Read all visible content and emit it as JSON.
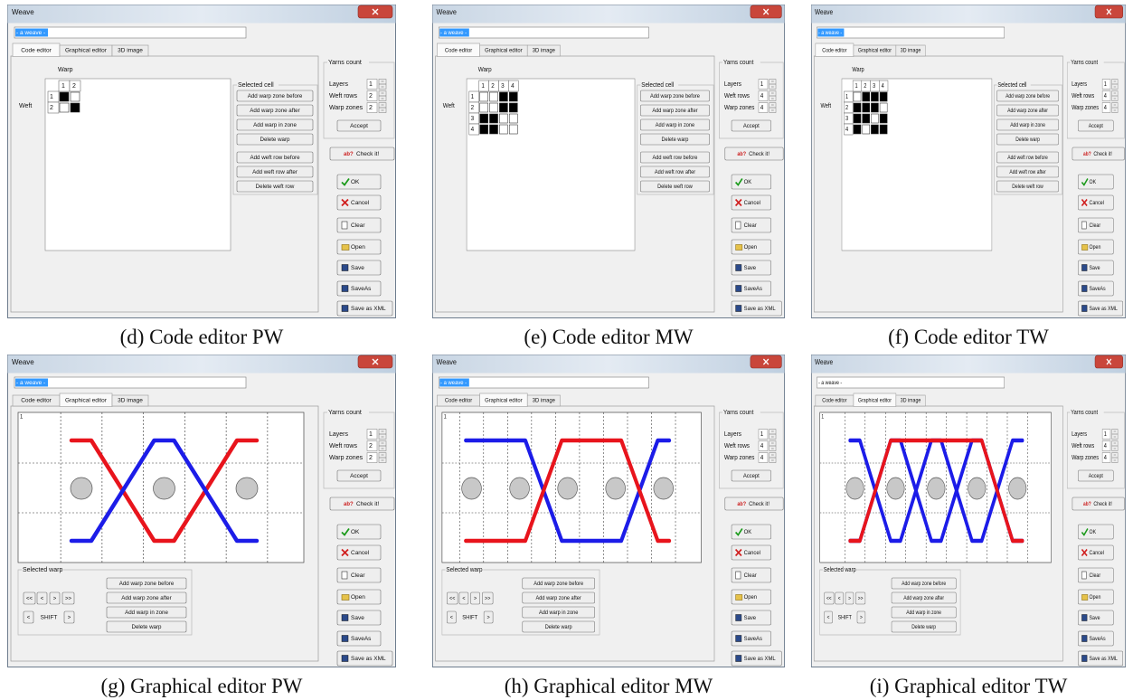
{
  "panels": [
    {
      "caption": "(d) Code editor PW",
      "title": "Weave",
      "name": "- a weave -",
      "name_highlight": true,
      "tabs": [
        "Code editor",
        "Graphical editor",
        "3D image"
      ],
      "active_tab": 0,
      "warp_label": "Warp",
      "weft_label": "Weft",
      "col_headers": [
        "1",
        "2"
      ],
      "row_headers": [
        "1",
        "2"
      ],
      "cells": [
        [
          true,
          false
        ],
        [
          false,
          true
        ]
      ],
      "group_title": "Selected cell",
      "buttons": [
        "Add warp zone before",
        "Add warp zone after",
        "Add warp in zone",
        "Delete warp",
        "Add weft row before",
        "Add weft row after",
        "Delete weft row"
      ],
      "yarns_title": "Yarns count",
      "yarn_labels": [
        "Layers",
        "Weft rows",
        "Warp zones"
      ],
      "yarn_values": [
        1,
        2,
        2
      ],
      "accept": "Accept",
      "check_icon": "ab?",
      "check": "Check it!",
      "actions": [
        "OK",
        "Cancel",
        "Clear",
        "Open",
        "Save",
        "SaveAs",
        "Save as XML"
      ]
    },
    {
      "caption": "(e) Code editor MW",
      "title": "Weave",
      "name": "- a weave -",
      "name_highlight": true,
      "tabs": [
        "Code editor",
        "Graphical editor",
        "3D image"
      ],
      "active_tab": 0,
      "warp_label": "Warp",
      "weft_label": "Weft",
      "col_headers": [
        "1",
        "2",
        "3",
        "4"
      ],
      "row_headers": [
        "1",
        "2",
        "3",
        "4"
      ],
      "cells": [
        [
          false,
          false,
          true,
          true
        ],
        [
          false,
          false,
          true,
          true
        ],
        [
          true,
          true,
          false,
          false
        ],
        [
          true,
          true,
          false,
          false
        ]
      ],
      "group_title": "Selected cell",
      "buttons": [
        "Add warp zone before",
        "Add warp zone after",
        "Add warp in zone",
        "Delete warp",
        "Add weft row before",
        "Add weft row after",
        "Delete weft row"
      ],
      "yarns_title": "Yarns count",
      "yarn_labels": [
        "Layers",
        "Weft rows",
        "Warp zones"
      ],
      "yarn_values": [
        1,
        4,
        4
      ],
      "accept": "Accept",
      "check_icon": "ab?",
      "check": "Check it!",
      "actions": [
        "OK",
        "Cancel",
        "Clear",
        "Open",
        "Save",
        "SaveAs",
        "Save as XML"
      ]
    },
    {
      "caption": "(f) Code editor TW",
      "title": "Weave",
      "name": "- a weave -",
      "name_highlight": true,
      "tabs": [
        "Code editor",
        "Graphical editor",
        "3D image"
      ],
      "active_tab": 0,
      "warp_label": "Warp",
      "weft_label": "Weft",
      "col_headers": [
        "1",
        "2",
        "3",
        "4"
      ],
      "row_headers": [
        "1",
        "2",
        "3",
        "4"
      ],
      "cells": [
        [
          false,
          true,
          true,
          true
        ],
        [
          true,
          true,
          true,
          false
        ],
        [
          true,
          true,
          false,
          true
        ],
        [
          true,
          false,
          true,
          true
        ]
      ],
      "group_title": "Selected cell",
      "buttons": [
        "Add warp zone before",
        "Add warp zone after",
        "Add warp in zone",
        "Delete warp",
        "Add weft row before",
        "Add weft row after",
        "Delete weft row"
      ],
      "yarns_title": "Yarns count",
      "yarn_labels": [
        "Layers",
        "Weft rows",
        "Warp zones"
      ],
      "yarn_values": [
        1,
        4,
        4
      ],
      "accept": "Accept",
      "check_icon": "ab?",
      "check": "Check it!",
      "actions": [
        "OK",
        "Cancel",
        "Clear",
        "Open",
        "Save",
        "SaveAs",
        "Save as XML"
      ]
    },
    {
      "caption": "(g) Graphical editor PW",
      "title": "Weave",
      "name": "- a weave -",
      "name_highlight": true,
      "tabs": [
        "Code editor",
        "Graphical editor",
        "3D image"
      ],
      "active_tab": 1,
      "canvas_label": "1",
      "warp_colors": [
        "#e8141c",
        "#1c1ce8"
      ],
      "group_title": "Selected warp",
      "nav": [
        "<<",
        "<",
        ">",
        ">>"
      ],
      "shift": [
        "<",
        "SHIFT",
        ">"
      ],
      "buttons": [
        "Add warp zone before",
        "Add warp zone after",
        "Add warp in zone",
        "Delete warp"
      ],
      "yarns_title": "Yarns count",
      "yarn_labels": [
        "Layers",
        "Weft rows",
        "Warp zones"
      ],
      "yarn_values": [
        1,
        2,
        2
      ],
      "accept": "Accept",
      "check_icon": "ab?",
      "check": "Check it!",
      "actions": [
        "OK",
        "Cancel",
        "Clear",
        "Open",
        "Save",
        "SaveAs",
        "Save as XML"
      ]
    },
    {
      "caption": "(h)  Graphical editor MW",
      "title": "Weave",
      "name": "- a weave -",
      "name_highlight": true,
      "tabs": [
        "Code editor",
        "Graphical editor",
        "3D image"
      ],
      "active_tab": 1,
      "canvas_label": "1",
      "warp_colors": [
        "#e8141c",
        "#1c1ce8"
      ],
      "group_title": "Selected warp",
      "nav": [
        "<<",
        "<",
        ">",
        ">>"
      ],
      "shift": [
        "<",
        "SHIFT",
        ">"
      ],
      "buttons": [
        "Add warp zone before",
        "Add warp zone after",
        "Add warp in zone",
        "Delete warp"
      ],
      "yarns_title": "Yarns count",
      "yarn_labels": [
        "Layers",
        "Weft rows",
        "Warp zones"
      ],
      "yarn_values": [
        1,
        4,
        4
      ],
      "accept": "Accept",
      "check_icon": "ab?",
      "check": "Check it!",
      "actions": [
        "OK",
        "Cancel",
        "Clear",
        "Open",
        "Save",
        "SaveAs",
        "Save as XML"
      ]
    },
    {
      "caption": "(i) Graphical editor TW",
      "title": "Weave",
      "name": "- a weave -",
      "name_highlight": false,
      "tabs": [
        "Code editor",
        "Graphical editor",
        "3D image"
      ],
      "active_tab": 1,
      "canvas_label": "1",
      "warp_colors": [
        "#e8141c",
        "#1c1ce8"
      ],
      "group_title": "Selected warp",
      "nav": [
        "<<",
        "<",
        ">",
        ">>"
      ],
      "shift": [
        "<",
        "SHIFT",
        ">"
      ],
      "buttons": [
        "Add warp zone before",
        "Add warp zone after",
        "Add warp in zone",
        "Delete warp"
      ],
      "yarns_title": "Yarns count",
      "yarn_labels": [
        "Layers",
        "Weft rows",
        "Warp zones"
      ],
      "yarn_values": [
        1,
        4,
        4
      ],
      "accept": "Accept",
      "check_icon": "ab?",
      "check": "Check it!",
      "actions": [
        "OK",
        "Cancel",
        "Clear",
        "Open",
        "Save",
        "SaveAs",
        "Save as XML"
      ]
    }
  ]
}
